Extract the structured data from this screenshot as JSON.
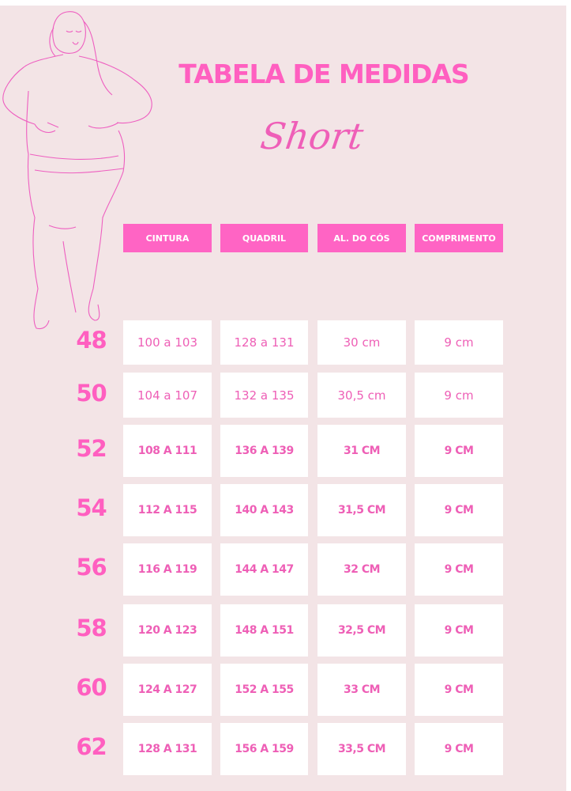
{
  "title": "TABELA DE MEDIDAS",
  "subtitle": "Short",
  "colors": {
    "background": "#f3e4e6",
    "accent": "#ff64c4",
    "text": "#ee5fb6"
  },
  "illustration": "line-drawing-woman-figure",
  "headers": [
    "CINTURA",
    "QUADRIL",
    "AL. DO CÓS",
    "COMPRIMENTO"
  ],
  "rows": [
    {
      "size": "48",
      "values": [
        "100 a 103",
        "128 a 131",
        "30 cm",
        "9 cm"
      ]
    },
    {
      "size": "50",
      "values": [
        "104 a 107",
        "132 a 135",
        "30,5 cm",
        "9 cm"
      ]
    },
    {
      "size": "52",
      "values": [
        "108 A 111",
        "136 A 139",
        "31 CM",
        "9 CM"
      ]
    },
    {
      "size": "54",
      "values": [
        "112 A 115",
        "140 A 143",
        "31,5 CM",
        "9 CM"
      ]
    },
    {
      "size": "56",
      "values": [
        "116 A 119",
        "144 A 147",
        "32 CM",
        "9 CM"
      ]
    },
    {
      "size": "58",
      "values": [
        "120 A 123",
        "148 A 151",
        "32,5 CM",
        "9 CM"
      ]
    },
    {
      "size": "60",
      "values": [
        "124 A 127",
        "152 A 155",
        "33 CM",
        "9 CM"
      ]
    },
    {
      "size": "62",
      "values": [
        "128 A 131",
        "156 A 159",
        "33,5 CM",
        "9 CM"
      ]
    }
  ]
}
